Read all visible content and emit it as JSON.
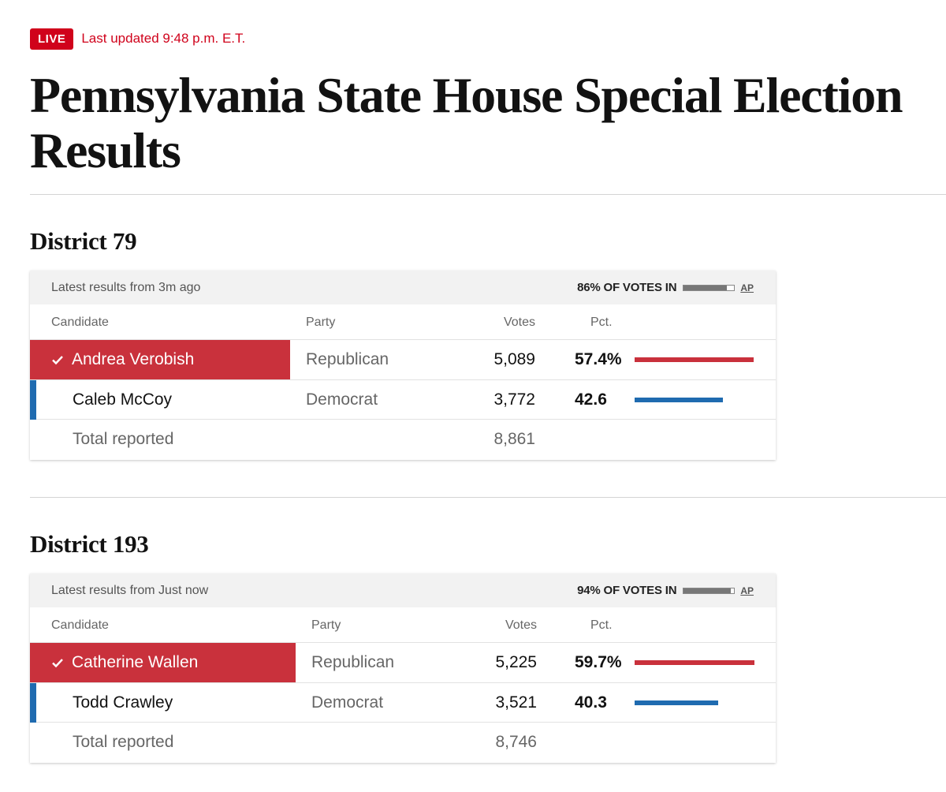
{
  "header": {
    "live_label": "LIVE",
    "updated_text": "Last updated 9:48 p.m. E.T.",
    "title": "Pennsylvania State House Special Election Results"
  },
  "colors": {
    "live_red": "#d0021b",
    "republican": "#c9313c",
    "democrat": "#1f6bb0"
  },
  "districts": [
    {
      "title": "District 79",
      "latest": "Latest results from 3m ago",
      "reporting": "86% OF VOTES IN",
      "reporting_pct": 86,
      "source": "AP",
      "columns": {
        "candidate": "Candidate",
        "party": "Party",
        "votes": "Votes",
        "pct": "Pct."
      },
      "candidates": [
        {
          "name": "Andrea Verobish",
          "party": "Republican",
          "votes": "5,089",
          "pct": "57.4%",
          "pct_value": 57.4,
          "winner": true
        },
        {
          "name": "Caleb McCoy",
          "party": "Democrat",
          "votes": "3,772",
          "pct": "42.6",
          "pct_value": 42.6,
          "winner": false
        }
      ],
      "total_label": "Total reported",
      "total_votes": "8,861"
    },
    {
      "title": "District 193",
      "latest": "Latest results from Just now",
      "reporting": "94% OF VOTES IN",
      "reporting_pct": 94,
      "source": "AP",
      "columns": {
        "candidate": "Candidate",
        "party": "Party",
        "votes": "Votes",
        "pct": "Pct."
      },
      "candidates": [
        {
          "name": "Catherine Wallen",
          "party": "Republican",
          "votes": "5,225",
          "pct": "59.7%",
          "pct_value": 59.7,
          "winner": true
        },
        {
          "name": "Todd Crawley",
          "party": "Democrat",
          "votes": "3,521",
          "pct": "40.3",
          "pct_value": 40.3,
          "winner": false
        }
      ],
      "total_label": "Total reported",
      "total_votes": "8,746"
    }
  ]
}
